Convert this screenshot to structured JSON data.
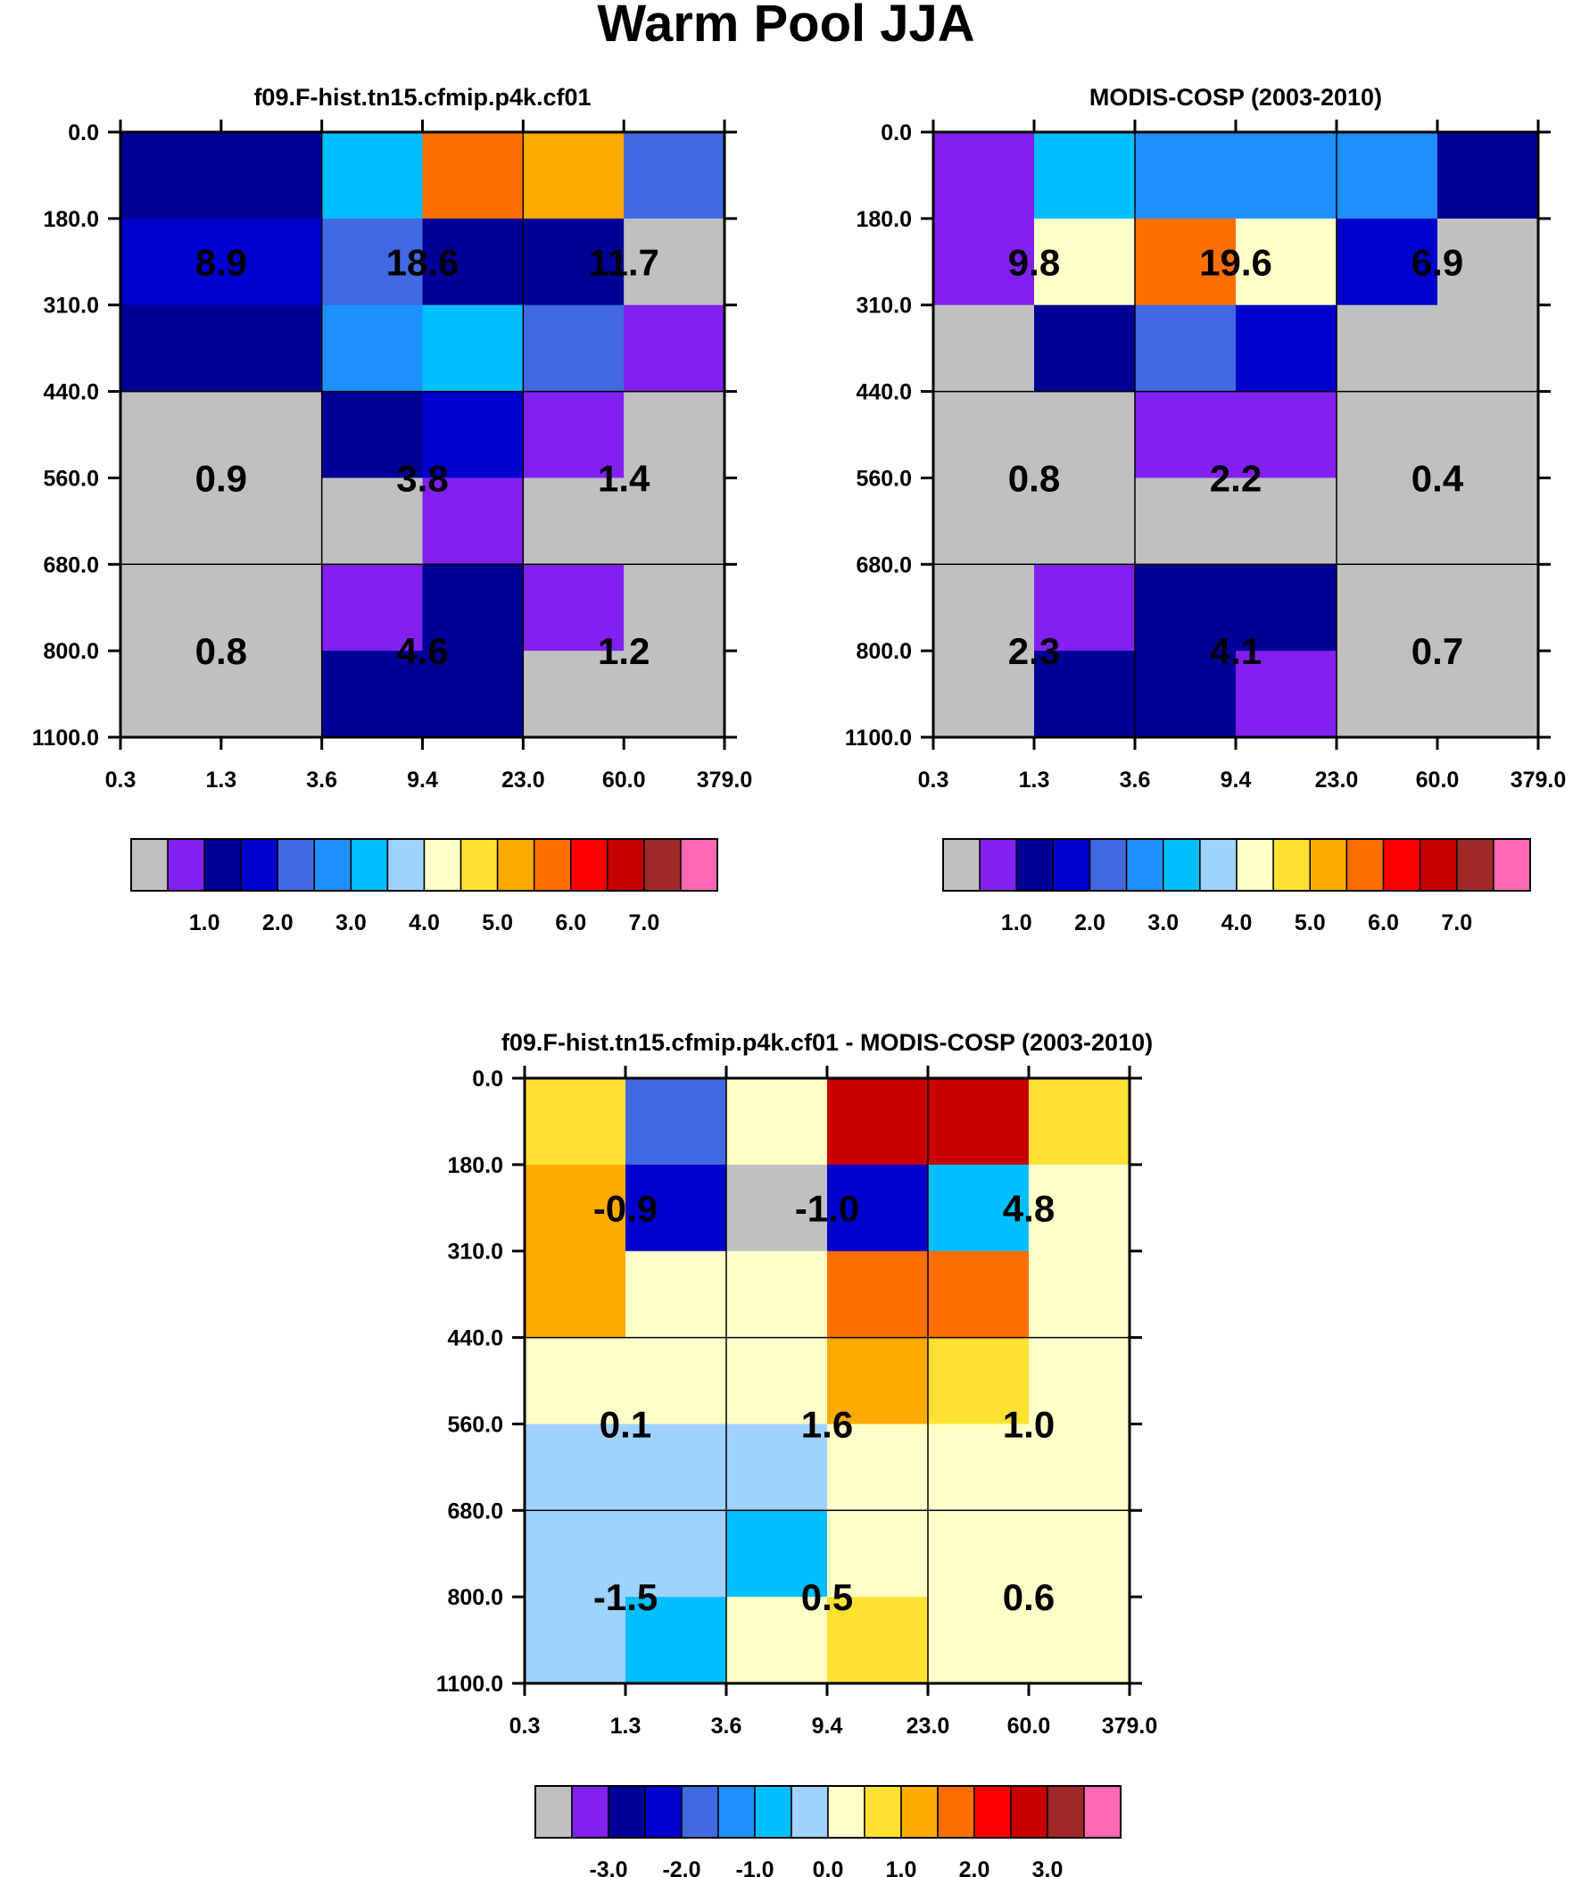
{
  "title": "Warm Pool JJA",
  "colors": {
    "palette": [
      "#c0c0c0",
      "#8220f0",
      "#000096",
      "#0000cd",
      "#4169e1",
      "#1e90ff",
      "#00bfff",
      "#a0d2ff",
      "#ffffc8",
      "#ffe132",
      "#ffaa00",
      "#ff6e00",
      "#ff0000",
      "#c80000",
      "#a02828",
      "#ff69b4"
    ],
    "background": "#ffffff",
    "axis": "#000000"
  },
  "chart_data": [
    {
      "type": "heatmap",
      "title": "f09.F-hist.tn15.cfmip.p4k.cf01",
      "xlabel": "",
      "ylabel": "",
      "x_ticks": [
        "0.3",
        "1.3",
        "3.6",
        "9.4",
        "23.0",
        "60.0",
        "379.0"
      ],
      "y_ticks": [
        "0.0",
        "180.0",
        "310.0",
        "440.0",
        "560.0",
        "680.0",
        "800.0",
        "1100.0"
      ],
      "color_index_grid": [
        [
          2,
          2,
          6,
          11,
          10,
          4
        ],
        [
          3,
          3,
          4,
          2,
          2,
          0
        ],
        [
          2,
          2,
          5,
          6,
          4,
          1
        ],
        [
          0,
          0,
          2,
          3,
          1,
          0
        ],
        [
          0,
          0,
          0,
          1,
          0,
          0
        ],
        [
          0,
          0,
          1,
          2,
          1,
          0
        ],
        [
          0,
          0,
          2,
          2,
          0,
          0
        ]
      ],
      "group_labels": [
        {
          "row": 0,
          "col": 0,
          "text": "8.9"
        },
        {
          "row": 0,
          "col": 1,
          "text": "18.6"
        },
        {
          "row": 0,
          "col": 2,
          "text": "11.7"
        },
        {
          "row": 1,
          "col": 0,
          "text": "0.9"
        },
        {
          "row": 1,
          "col": 1,
          "text": "3.8"
        },
        {
          "row": 1,
          "col": 2,
          "text": "1.4"
        },
        {
          "row": 2,
          "col": 0,
          "text": "0.8"
        },
        {
          "row": 2,
          "col": 1,
          "text": "4.6"
        },
        {
          "row": 2,
          "col": 2,
          "text": "1.2"
        }
      ],
      "colorbar": {
        "labels": [
          "1.0",
          "2.0",
          "3.0",
          "4.0",
          "5.0",
          "6.0",
          "7.0"
        ],
        "label_start_boundary": 2
      }
    },
    {
      "type": "heatmap",
      "title": "MODIS-COSP (2003-2010)",
      "xlabel": "",
      "ylabel": "",
      "x_ticks": [
        "0.3",
        "1.3",
        "3.6",
        "9.4",
        "23.0",
        "60.0",
        "379.0"
      ],
      "y_ticks": [
        "0.0",
        "180.0",
        "310.0",
        "440.0",
        "560.0",
        "680.0",
        "800.0",
        "1100.0"
      ],
      "color_index_grid": [
        [
          1,
          6,
          5,
          5,
          5,
          2
        ],
        [
          1,
          8,
          11,
          8,
          3,
          0
        ],
        [
          0,
          2,
          4,
          3,
          0,
          0
        ],
        [
          0,
          0,
          1,
          1,
          0,
          0
        ],
        [
          0,
          0,
          0,
          0,
          0,
          0
        ],
        [
          0,
          1,
          2,
          2,
          0,
          0
        ],
        [
          0,
          2,
          2,
          1,
          0,
          0
        ]
      ],
      "group_labels": [
        {
          "row": 0,
          "col": 0,
          "text": "9.8"
        },
        {
          "row": 0,
          "col": 1,
          "text": "19.6"
        },
        {
          "row": 0,
          "col": 2,
          "text": "6.9"
        },
        {
          "row": 1,
          "col": 0,
          "text": "0.8"
        },
        {
          "row": 1,
          "col": 1,
          "text": "2.2"
        },
        {
          "row": 1,
          "col": 2,
          "text": "0.4"
        },
        {
          "row": 2,
          "col": 0,
          "text": "2.3"
        },
        {
          "row": 2,
          "col": 1,
          "text": "4.1"
        },
        {
          "row": 2,
          "col": 2,
          "text": "0.7"
        }
      ],
      "colorbar": {
        "labels": [
          "1.0",
          "2.0",
          "3.0",
          "4.0",
          "5.0",
          "6.0",
          "7.0"
        ],
        "label_start_boundary": 2
      }
    },
    {
      "type": "heatmap",
      "title": "f09.F-hist.tn15.cfmip.p4k.cf01 - MODIS-COSP (2003-2010)",
      "xlabel": "",
      "ylabel": "",
      "x_ticks": [
        "0.3",
        "1.3",
        "3.6",
        "9.4",
        "23.0",
        "60.0",
        "379.0"
      ],
      "y_ticks": [
        "0.0",
        "180.0",
        "310.0",
        "440.0",
        "560.0",
        "680.0",
        "800.0",
        "1100.0"
      ],
      "color_index_grid": [
        [
          9,
          4,
          8,
          13,
          13,
          9
        ],
        [
          10,
          3,
          0,
          3,
          6,
          8
        ],
        [
          10,
          8,
          8,
          11,
          11,
          8
        ],
        [
          8,
          8,
          8,
          10,
          9,
          8
        ],
        [
          7,
          7,
          7,
          8,
          8,
          8
        ],
        [
          7,
          7,
          6,
          8,
          8,
          8
        ],
        [
          7,
          6,
          8,
          9,
          8,
          8
        ]
      ],
      "group_labels": [
        {
          "row": 0,
          "col": 0,
          "text": "-0.9"
        },
        {
          "row": 0,
          "col": 1,
          "text": "-1.0"
        },
        {
          "row": 0,
          "col": 2,
          "text": "4.8"
        },
        {
          "row": 1,
          "col": 0,
          "text": "0.1"
        },
        {
          "row": 1,
          "col": 1,
          "text": "1.6"
        },
        {
          "row": 1,
          "col": 2,
          "text": "1.0"
        },
        {
          "row": 2,
          "col": 0,
          "text": "-1.5"
        },
        {
          "row": 2,
          "col": 1,
          "text": "0.5"
        },
        {
          "row": 2,
          "col": 2,
          "text": "0.6"
        }
      ],
      "colorbar": {
        "labels": [
          "-3.0",
          "-2.0",
          "-1.0",
          "0.0",
          "1.0",
          "2.0",
          "3.0"
        ],
        "label_start_boundary": 2
      }
    }
  ]
}
